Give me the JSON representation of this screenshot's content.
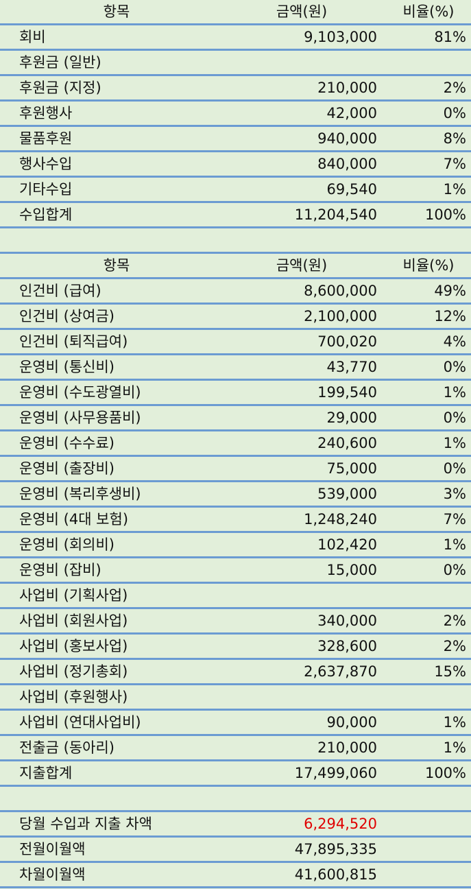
{
  "income": {
    "header": [
      "항목",
      "금액(원)",
      "비율(%)"
    ],
    "rows": [
      [
        "회비",
        "9,103,000",
        "81%"
      ],
      [
        "후원금 (일반)"
      ],
      [
        "후원금 (지정)",
        "210,000",
        "2%"
      ],
      [
        "후원행사",
        "42,000",
        "0%"
      ],
      [
        "물품후원",
        "940,000",
        "8%"
      ],
      [
        "행사수입",
        "840,000",
        "7%"
      ],
      [
        "기타수입",
        "69,540",
        "1%"
      ],
      [
        "수입합계",
        "11,204,540",
        "100%"
      ]
    ]
  },
  "expense": {
    "header": [
      "항목",
      "금액(원)",
      "비율(%)"
    ],
    "rows": [
      [
        "인건비 (급여)",
        "8,600,000",
        "49%"
      ],
      [
        "인건비 (상여금)",
        "2,100,000",
        "12%"
      ],
      [
        "인건비 (퇴직급여)",
        "700,020",
        "4%"
      ],
      [
        "운영비 (통신비)",
        "43,770",
        "0%"
      ],
      [
        "운영비 (수도광열비)",
        "199,540",
        "1%"
      ],
      [
        "운영비 (사무용품비)",
        "29,000",
        "0%"
      ],
      [
        "운영비 (수수료)",
        "240,600",
        "1%"
      ],
      [
        "운영비 (출장비)",
        "75,000",
        "0%"
      ],
      [
        "운영비 (복리후생비)",
        "539,000",
        "3%"
      ],
      [
        "운영비 (4대 보험)",
        "1,248,240",
        "7%"
      ],
      [
        "운영비 (회의비)",
        "102,420",
        "1%"
      ],
      [
        "운영비 (잡비)",
        "15,000",
        "0%"
      ],
      [
        "사업비 (기획사업)"
      ],
      [
        "사업비 (회원사업)",
        "340,000",
        "2%"
      ],
      [
        "사업비 (홍보사업)",
        "328,600",
        "2%"
      ],
      [
        "사업비 (정기총회)",
        "2,637,870",
        "15%"
      ],
      [
        "사업비 (후원행사)"
      ],
      [
        "사업비 (연대사업비)",
        "90,000",
        "1%"
      ],
      [
        "전출금 (동아리)",
        "210,000",
        "1%"
      ],
      [
        "지출합계",
        "17,499,060",
        "100%"
      ]
    ]
  },
  "summary": {
    "rows": [
      [
        "당월 수입과 지출 차액",
        "6,294,520"
      ],
      [
        "전월이월액",
        "47,895,335"
      ],
      [
        "차월이월액",
        "41,600,815"
      ]
    ]
  }
}
